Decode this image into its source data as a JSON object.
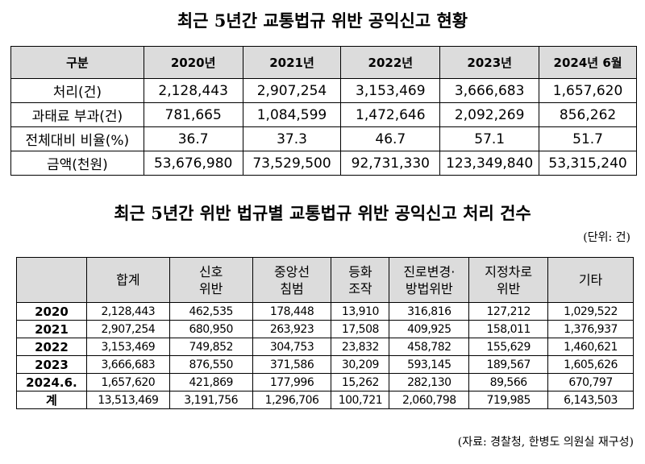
{
  "title1": "최근 5년간 교통법규 위반 공익신고 현황",
  "table1": {
    "headers": [
      "구분",
      "2020년",
      "2021년",
      "2022년",
      "2023년",
      "2024년 6월"
    ],
    "rows": [
      [
        "처리(건)",
        "2,128,443",
        "2,907,254",
        "3,153,469",
        "3,666,683",
        "1,657,620"
      ],
      [
        "과태료 부과(건)",
        "781,665",
        "1,084,599",
        "1,472,646",
        "2,092,269",
        "856,262"
      ],
      [
        "전체대비 비율(%)",
        "36.7",
        "37.3",
        "46.7",
        "57.1",
        "51.7"
      ],
      [
        "금액(천원)",
        "53,676,980",
        "73,529,500",
        "92,731,330",
        "123,349,840",
        "53,315,240"
      ]
    ]
  },
  "title2": "최근 5년간 위반 법규별 교통법규 위반 공익신고 처리 건수",
  "unit": "(단위: 건)",
  "table2": {
    "headers": [
      "",
      "합계",
      "신호\n위반",
      "중앙선\n침범",
      "등화\n조작",
      "진로변경·\n방법위반",
      "지정차로\n위반",
      "기타"
    ],
    "rows": [
      [
        "2020",
        "2,128,443",
        "462,535",
        "178,448",
        "13,910",
        "316,816",
        "127,212",
        "1,029,522"
      ],
      [
        "2021",
        "2,907,254",
        "680,950",
        "263,923",
        "17,508",
        "409,925",
        "158,011",
        "1,376,937"
      ],
      [
        "2022",
        "3,153,469",
        "749,852",
        "304,753",
        "23,832",
        "458,782",
        "155,629",
        "1,460,621"
      ],
      [
        "2023",
        "3,666,683",
        "876,550",
        "371,586",
        "30,209",
        "593,145",
        "189,567",
        "1,605,626"
      ],
      [
        "2024.6.",
        "1,657,620",
        "421,869",
        "177,996",
        "15,262",
        "282,130",
        "89,566",
        "670,797"
      ],
      [
        "계",
        "13,513,469",
        "3,191,756",
        "1,296,706",
        "100,721",
        "2,060,798",
        "719,985",
        "6,143,503"
      ]
    ]
  },
  "source": "(자료: 경찰청, 한병도 의원실 재구성)"
}
